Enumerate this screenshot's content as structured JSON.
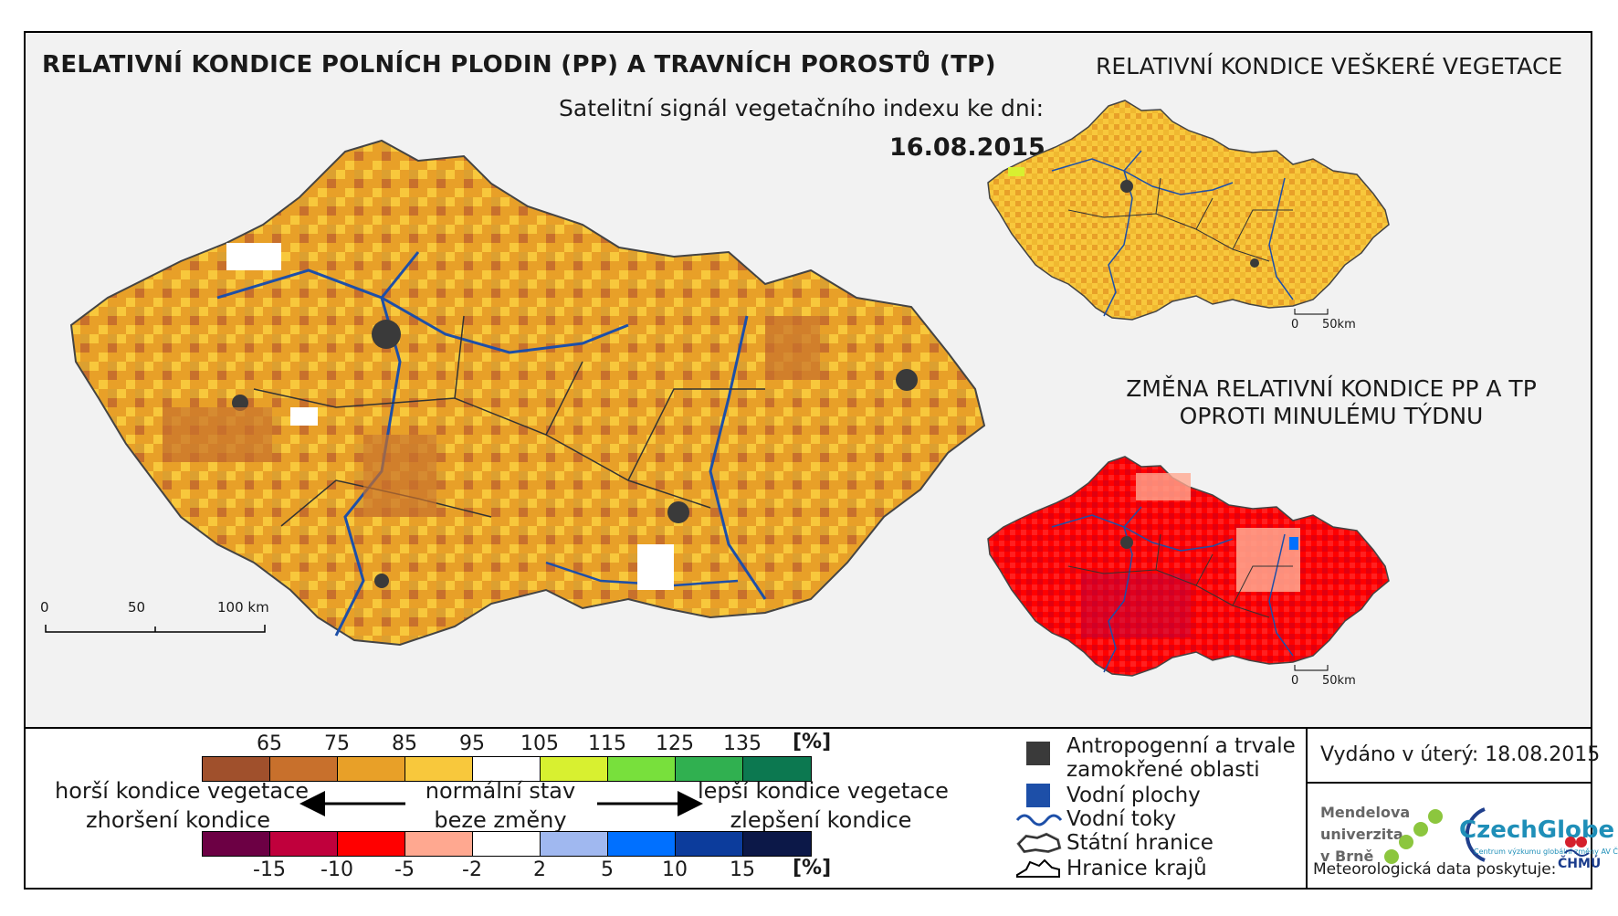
{
  "header": {
    "main_title": "RELATIVNÍ KONDICE POLNÍCH PLODIN (PP) A TRAVNÍCH POROSTŮ (TP)",
    "satellite_label": "Satelitní signál vegetačního indexu ke dni:",
    "date": "16.08.2015",
    "vegetation_title": "RELATIVNÍ KONDICE VEŠKERÉ VEGETACE",
    "change_title_line1": "ZMĚNA RELATIVNÍ KONDICE PP A TP",
    "change_title_line2": "OPROTI MINULÉMU TÝDNU"
  },
  "scales": {
    "main": [
      "0",
      "50",
      "100 km"
    ],
    "small_veg": [
      "0",
      "50km"
    ],
    "small_chg": [
      "0",
      "50km"
    ]
  },
  "legend": {
    "condition_ticks": [
      "65",
      "75",
      "85",
      "95",
      "105",
      "115",
      "125",
      "135"
    ],
    "condition_unit": "[%]",
    "condition_colors": [
      "#a0502c",
      "#c8702c",
      "#e8a028",
      "#f8c83c",
      "#ffffff",
      "#d8f030",
      "#78e03c",
      "#30b050",
      "#0c7850"
    ],
    "change_ticks": [
      "-15",
      "-10",
      "-5",
      "-2",
      "2",
      "5",
      "10",
      "15"
    ],
    "change_unit": "[%]",
    "change_colors": [
      "#6c0044",
      "#c0003c",
      "#ff0000",
      "#ffa890",
      "#ffffff",
      "#a0b8f0",
      "#0070ff",
      "#0c3c9c",
      "#0c1848"
    ],
    "left_caption_1": "horší kondice vegetace",
    "left_caption_2": "zhoršení kondice",
    "center_caption_1": "normální stav",
    "center_caption_2": "beze změny",
    "right_caption_1": "lepší kondice vegetace",
    "right_caption_2": "zlepšení kondice"
  },
  "symbols": {
    "anthropogenic_1": "Antropogenní a trvale",
    "anthropogenic_2": "zamokřené oblasti",
    "water_bodies": "Vodní plochy",
    "water_courses": "Vodní toky",
    "state_border": "Státní hranice",
    "region_border": "Hranice krajů",
    "anthropogenic_color": "#3a3a3a",
    "water_color": "#1d4fa8"
  },
  "footer": {
    "issued": "Vydáno v úterý: 18.08.2015",
    "mendel_1": "Mendelova",
    "mendel_2": "univerzita",
    "mendel_3": "v Brně",
    "czechglobe": "CzechGlobe",
    "czechglobe_sub": "Centrum výzkumu globální změny AV ČR, v. v. i.",
    "meteo": "Meteorologická data poskytuje:",
    "chmu": "ČHMÚ"
  }
}
